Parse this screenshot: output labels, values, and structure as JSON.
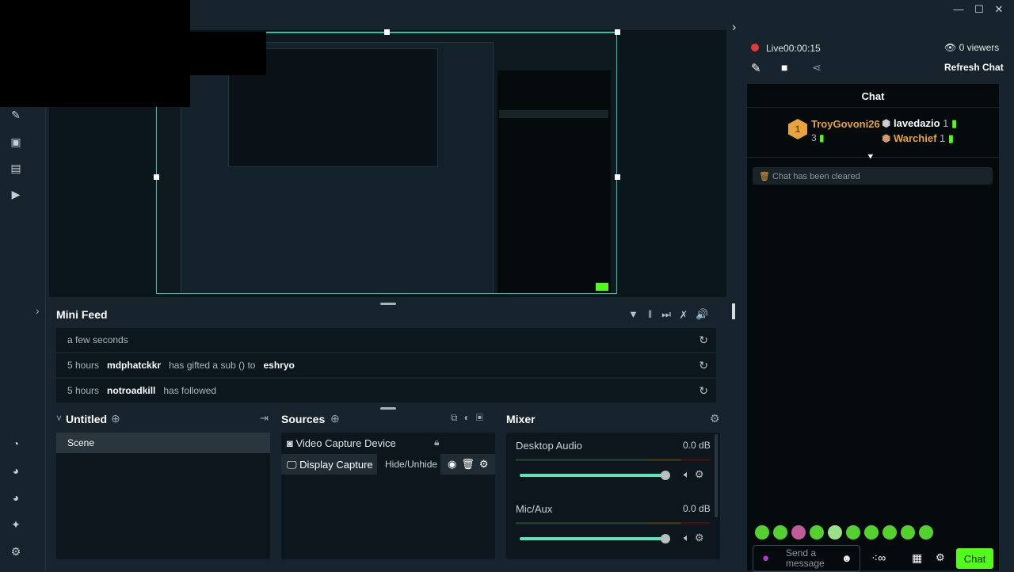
{
  "window": {
    "minimize": "—",
    "maximize": "☐",
    "close": "✕"
  },
  "colors": {
    "accent": "#31c3a2",
    "live": "#e53935",
    "chat_button": "#53fc18",
    "gold": "#e8a33c"
  },
  "sidebar": {
    "icons": [
      "wrench-icon",
      "store-icon",
      "clapperboard-icon",
      "play-icon",
      "dashboard-icon",
      "help-icon",
      "help-alt-icon",
      "sparkle-icon",
      "gear-icon"
    ]
  },
  "minifeed": {
    "title": "Mini Feed",
    "rows": [
      {
        "time": "a few seconds",
        "user": "",
        "text": "",
        "target": ""
      },
      {
        "time": "5 hours",
        "user": "mdphatckkr",
        "text": "has gifted a sub () to",
        "target": "eshryo"
      },
      {
        "time": "5 hours",
        "user": "notroadkill",
        "text": "has followed",
        "target": ""
      }
    ]
  },
  "scenes": {
    "title": "Untitled",
    "items": [
      "Scene"
    ]
  },
  "sources": {
    "title": "Sources",
    "items": [
      "Video Capture Device",
      "Display Capture"
    ],
    "tooltip": "Hide/Unhide"
  },
  "mixer": {
    "title": "Mixer",
    "channels": [
      {
        "name": "Desktop Audio",
        "db": "0.0 dB",
        "volume": 1.0
      },
      {
        "name": "Mic/Aux",
        "db": "0.0 dB",
        "volume": 1.0
      }
    ]
  },
  "chat": {
    "live_label": "Live",
    "timer": "00:00:15",
    "viewers": "0 viewers",
    "refresh": "Refresh Chat",
    "title": "Chat",
    "leaders": [
      {
        "rank": "1",
        "name": "TroyGovoni26",
        "count": "3"
      },
      {
        "rank": "2",
        "name": "lavedazio",
        "count": "1"
      },
      {
        "rank": "3",
        "name": "Warchief",
        "count": "1"
      }
    ],
    "cleared": "Chat has been cleared",
    "placeholder": "Send a message",
    "send": "Chat"
  }
}
